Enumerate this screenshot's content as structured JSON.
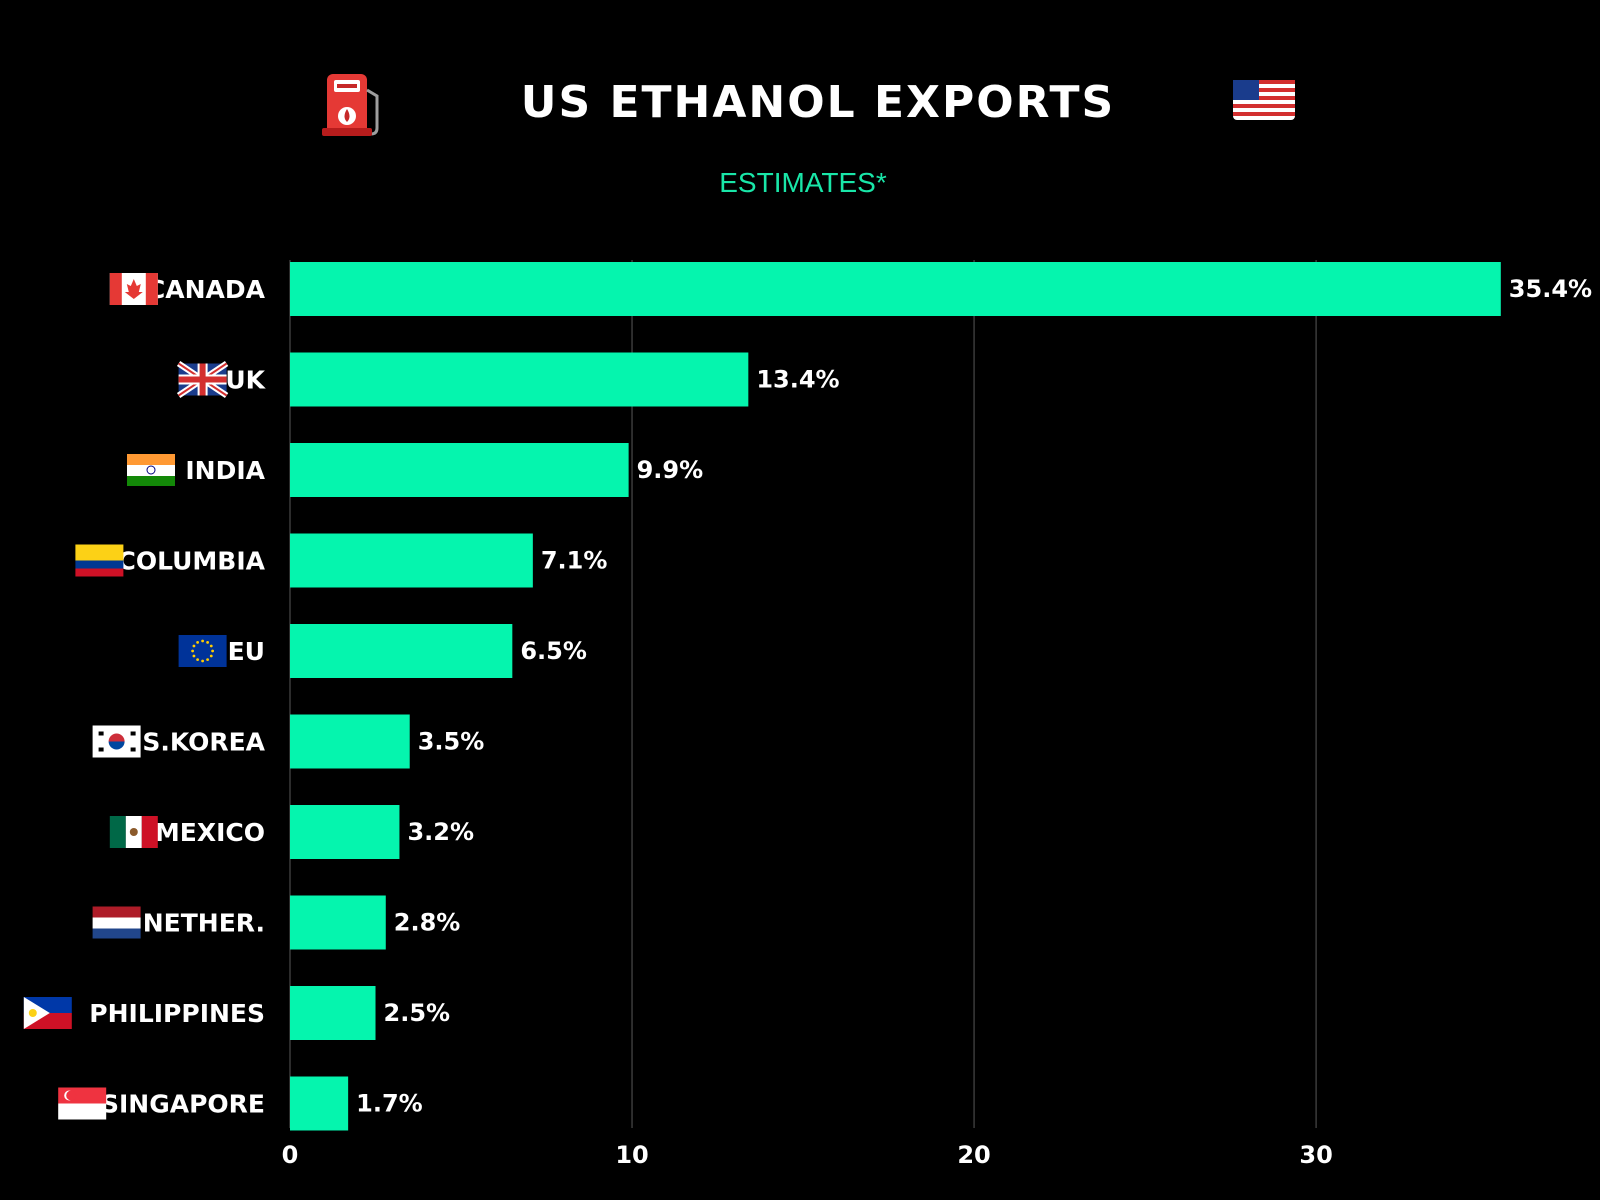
{
  "chart_data": {
    "type": "bar",
    "orientation": "horizontal",
    "title": "US ETHANOL EXPORTS",
    "subtitle": "ESTIMATES*",
    "categories": [
      "CANADA",
      "UK",
      "INDIA",
      "COLUMBIA",
      "EU",
      "S.KOREA",
      "MEXICO",
      "NETHER.",
      "PHILIPPINES",
      "SINGAPORE"
    ],
    "values": [
      35.4,
      13.4,
      9.9,
      7.1,
      6.5,
      3.5,
      3.2,
      2.8,
      2.5,
      1.7
    ],
    "value_labels": [
      "35.4%",
      "13.4%",
      "9.9%",
      "7.1%",
      "6.5%",
      "3.5%",
      "3.2%",
      "2.8%",
      "2.5%",
      "1.7%"
    ],
    "flag_icons": [
      "canada-flag-icon",
      "uk-flag-icon",
      "india-flag-icon",
      "colombia-flag-icon",
      "eu-flag-icon",
      "south-korea-flag-icon",
      "mexico-flag-icon",
      "netherlands-flag-icon",
      "philippines-flag-icon",
      "singapore-flag-icon"
    ],
    "title_icons": [
      "fuel-pump-icon",
      "usa-flag-icon"
    ],
    "xticks": [
      "0",
      "10",
      "20",
      "30"
    ],
    "xtick_values": [
      0,
      10,
      20,
      30
    ],
    "xlim": [
      0,
      38.3
    ],
    "xlabel": "",
    "ylabel": "",
    "grid": true
  },
  "colors": {
    "background": "#000000",
    "bar": "#05f5ae",
    "subtitle": "#19e6a8",
    "grid": "#3a3a3a",
    "text": "#ffffff"
  }
}
